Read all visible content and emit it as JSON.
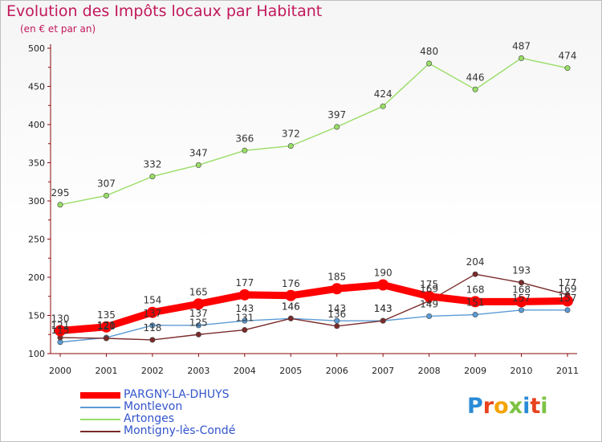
{
  "title": "Evolution des Impôts locaux par Habitant",
  "subtitle": "(en € et par an)",
  "logo_text": "Proxiti",
  "chart_data": {
    "type": "line",
    "title": "Evolution des Impôts locaux par Habitant",
    "subtitle": "(en € et par an)",
    "xlabel": "",
    "ylabel": "",
    "ylim": [
      100,
      500
    ],
    "yticks": [
      100,
      150,
      200,
      250,
      300,
      350,
      400,
      450,
      500
    ],
    "x": [
      2000,
      2001,
      2002,
      2003,
      2004,
      2005,
      2006,
      2007,
      2008,
      2009,
      2010,
      2011
    ],
    "grid": false,
    "legend_position": "bottom-left",
    "series": [
      {
        "name": "PARGNY-LA-DHUYS",
        "color": "#ff0000",
        "values": [
          130,
          135,
          154,
          165,
          177,
          176,
          185,
          190,
          175,
          168,
          168,
          169
        ],
        "labels": [
          "130",
          "135",
          "154",
          "165",
          "177",
          "176",
          "185",
          "190",
          "175",
          "168",
          "168",
          "169"
        ]
      },
      {
        "name": "Montlevon",
        "color": "#5b9bd5",
        "values": [
          115,
          121,
          137,
          137,
          143,
          146,
          143,
          143,
          149,
          151,
          157,
          157
        ],
        "labels": [
          "115",
          "121",
          "137",
          "137",
          "143",
          "146",
          "143",
          "143",
          "149",
          "151",
          "157",
          "157"
        ]
      },
      {
        "name": "Artonges",
        "color": "#99dd66",
        "values": [
          295,
          307,
          332,
          347,
          366,
          372,
          397,
          424,
          480,
          446,
          487,
          474
        ],
        "labels": [
          "295",
          "307",
          "332",
          "347",
          "366",
          "372",
          "397",
          "424",
          "480",
          "446",
          "487",
          "474"
        ]
      },
      {
        "name": "Montigny-lès-Condé",
        "color": "#7a2a2a",
        "values": [
          121,
          120,
          118,
          125,
          131,
          146,
          136,
          143,
          169,
          204,
          193,
          177
        ],
        "labels": [
          "121",
          "120",
          "118",
          "125",
          "131",
          "146",
          "136",
          "143",
          "169",
          "204",
          "193",
          "177"
        ]
      }
    ]
  }
}
